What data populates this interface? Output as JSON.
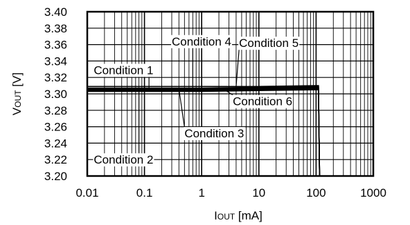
{
  "chart_data": {
    "type": "line",
    "x_scale": "log",
    "xlim": [
      0.01,
      1000
    ],
    "ylim": [
      3.2,
      3.4
    ],
    "x_ticks": [
      "0.01",
      "0.1",
      "1",
      "10",
      "100",
      "1000"
    ],
    "y_ticks": [
      "3.20",
      "3.22",
      "3.24",
      "3.26",
      "3.28",
      "3.30",
      "3.32",
      "3.34",
      "3.36",
      "3.38",
      "3.40"
    ],
    "xlabel": {
      "main": "I",
      "sub": "OUT",
      "unit": " [mA]"
    },
    "ylabel": {
      "main": "V",
      "sub": "OUT",
      "unit": " [V]"
    },
    "grid": true,
    "series": [
      {
        "name": "Condition 1",
        "x": [
          0.01,
          1,
          10,
          100,
          110,
          115
        ],
        "y": [
          3.304,
          3.304,
          3.305,
          3.306,
          3.306,
          3.2
        ]
      },
      {
        "name": "Condition 2",
        "x": [
          0.01,
          1,
          10,
          100,
          110,
          115
        ],
        "y": [
          3.303,
          3.303,
          3.304,
          3.305,
          3.305,
          3.2
        ]
      },
      {
        "name": "Condition 3",
        "x": [
          0.01,
          1,
          10,
          100,
          110,
          115
        ],
        "y": [
          3.306,
          3.306,
          3.307,
          3.308,
          3.308,
          3.2
        ]
      },
      {
        "name": "Condition 4",
        "x": [
          0.01,
          1,
          10,
          100,
          110,
          115
        ],
        "y": [
          3.307,
          3.307,
          3.308,
          3.309,
          3.309,
          3.2
        ]
      },
      {
        "name": "Condition 5",
        "x": [
          0.01,
          1,
          10,
          100,
          110,
          115
        ],
        "y": [
          3.309,
          3.309,
          3.309,
          3.31,
          3.31,
          3.2
        ]
      },
      {
        "name": "Condition 6",
        "x": [
          0.01,
          1,
          10,
          100,
          110,
          115
        ],
        "y": [
          3.305,
          3.305,
          3.306,
          3.307,
          3.307,
          3.2
        ]
      }
    ],
    "annotations": [
      {
        "text": "Condition 1",
        "anchor": "start",
        "lx": 0.013,
        "ly": 3.324,
        "px": 0.12,
        "py": 3.306
      },
      {
        "text": "Condition 2",
        "anchor": "start",
        "lx": 0.013,
        "ly": 3.215,
        "px": 0.08,
        "py": 3.303
      },
      {
        "text": "Condition 3",
        "anchor": "start",
        "lx": 0.5,
        "ly": 3.247,
        "px": 0.4,
        "py": 3.306
      },
      {
        "text": "Condition 4",
        "anchor": "start",
        "lx": 0.3,
        "ly": 3.359,
        "px": 0.7,
        "py": 3.307
      },
      {
        "text": "Condition 5",
        "anchor": "start",
        "lx": 4.5,
        "ly": 3.357,
        "px": 4.0,
        "py": 3.309
      },
      {
        "text": "Condition 6",
        "anchor": "start",
        "lx": 3.5,
        "ly": 3.286,
        "px": 2.5,
        "py": 3.305
      }
    ]
  }
}
